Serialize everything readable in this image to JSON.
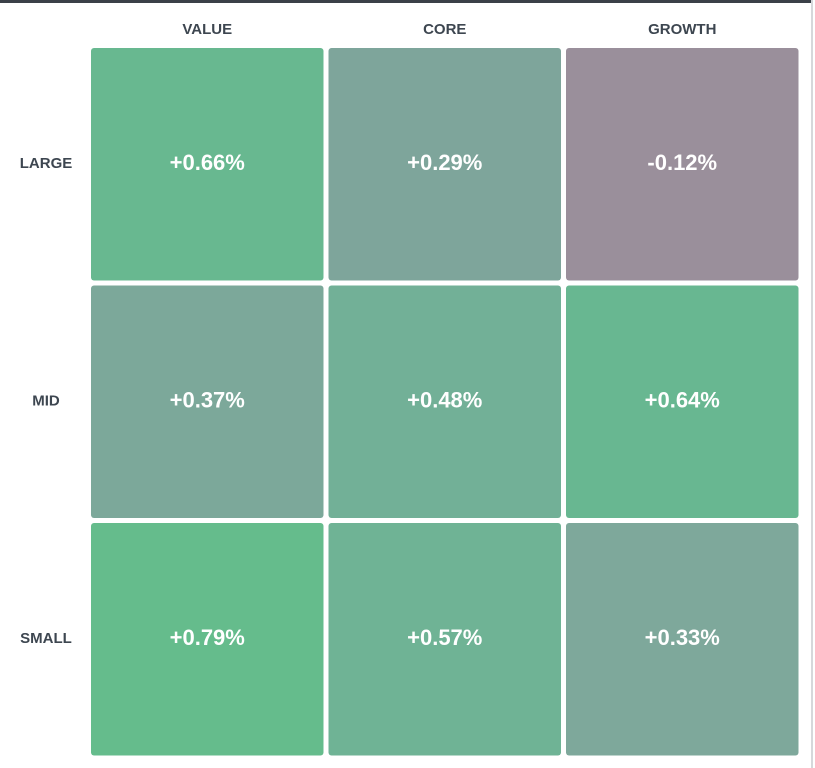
{
  "chart_data": {
    "type": "heatmap",
    "x_categories": [
      "VALUE",
      "CORE",
      "GROWTH"
    ],
    "y_categories": [
      "LARGE",
      "MID",
      "SMALL"
    ],
    "values": [
      [
        0.66,
        0.29,
        -0.12
      ],
      [
        0.37,
        0.48,
        0.64
      ],
      [
        0.79,
        0.57,
        0.33
      ]
    ],
    "value_labels": [
      [
        "+0.66%",
        "+0.29%",
        "-0.12%"
      ],
      [
        "+0.37%",
        "+0.48%",
        "+0.64%"
      ],
      [
        "+0.79%",
        "+0.57%",
        "+0.33%"
      ]
    ],
    "colors": [
      [
        "#68b890",
        "#7ea59b",
        "#9a8f9b"
      ],
      [
        "#7ca89a",
        "#72b097",
        "#68b791"
      ],
      [
        "#65bc8c",
        "#6fb395",
        "#7ea89b"
      ]
    ]
  }
}
